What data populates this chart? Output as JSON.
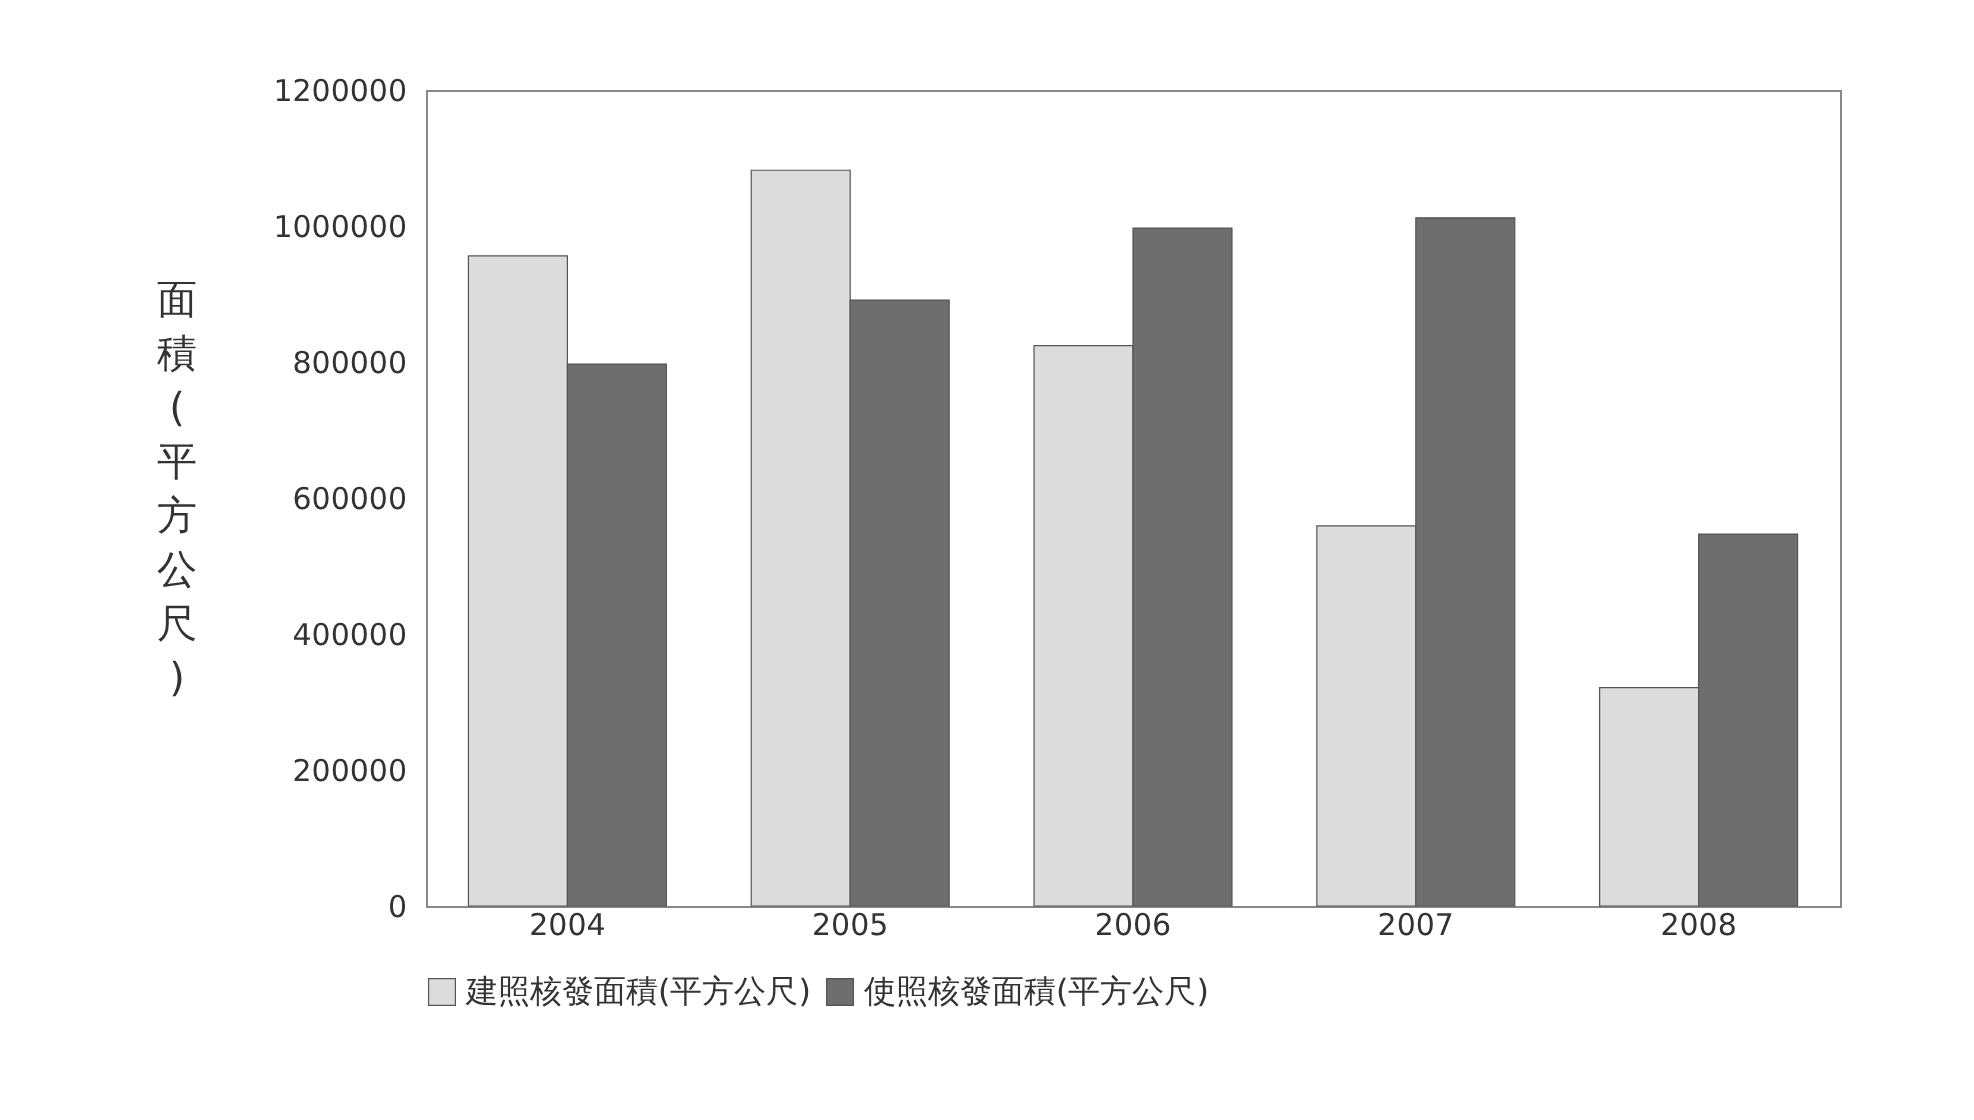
{
  "chart_data": {
    "type": "bar",
    "ylabel": "面積(平方公尺)",
    "categories": [
      "2004",
      "2005",
      "2006",
      "2007",
      "2008"
    ],
    "series": [
      {
        "name": "建照核發面積(平方公尺)",
        "color": "#dcdcdc",
        "values": [
          956000,
          1082000,
          824000,
          559000,
          321000
        ]
      },
      {
        "name": "使照核發面積(平方公尺)",
        "color": "#6e6e6e",
        "values": [
          797000,
          891000,
          997000,
          1012000,
          547000
        ]
      }
    ],
    "ylim": [
      0,
      1200000
    ],
    "yticks": [
      0,
      200000,
      400000,
      600000,
      800000,
      1000000,
      1200000
    ],
    "grid": false,
    "legend": "bottom"
  }
}
